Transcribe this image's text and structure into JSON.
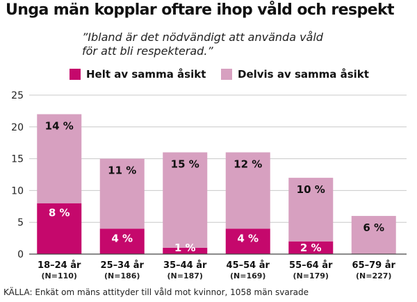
{
  "colors": {
    "helt": "#c5086c",
    "delvis": "#d7a0c0",
    "grid": "#c8c8c8",
    "axis": "#444444"
  },
  "chart_data": {
    "type": "bar",
    "stacked": true,
    "title": "Unga män kopplar oftare ihop våld och respekt",
    "subtitle": "”Ibland är det nödvändigt att använda våld\nför att bli respekterad.”",
    "categories": [
      "18–24 år",
      "25–34 år",
      "35–44 år",
      "45–54 år",
      "55–64 år",
      "65–79 år"
    ],
    "category_notes": [
      "(N=110)",
      "(N=186)",
      "(N=187)",
      "(N=169)",
      "(N=179)",
      "(N=227)"
    ],
    "series": [
      {
        "name": "Helt av samma åsikt",
        "values": [
          8,
          4,
          1,
          4,
          2,
          0
        ],
        "labels": [
          "8 %",
          "4 %",
          "1 %",
          "4 %",
          "2 %",
          ""
        ]
      },
      {
        "name": "Delvis av samma åsikt",
        "values": [
          14,
          11,
          15,
          12,
          10,
          6
        ],
        "labels": [
          "14 %",
          "11 %",
          "15 %",
          "12 %",
          "10 %",
          "6 %"
        ]
      }
    ],
    "ylim": [
      0,
      25
    ],
    "yticks": [
      0,
      5,
      10,
      15,
      20,
      25
    ],
    "grid": true,
    "legend": "top",
    "source": "KÄLLA: Enkät om mäns attityder till våld mot kvinnor, 1058 män svarade"
  }
}
